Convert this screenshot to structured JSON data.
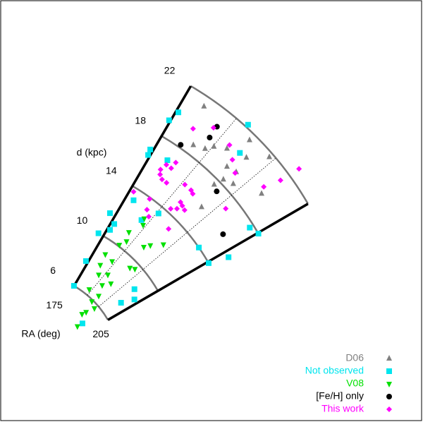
{
  "chart_data": {
    "type": "polar-wedge",
    "xlabel": "RA (deg)",
    "ylabel": "d (kpc)",
    "xlim": [
      175,
      205
    ],
    "xticks": [
      175,
      205
    ],
    "xgrid": [
      185,
      195
    ],
    "ylim": [
      6,
      22
    ],
    "yticks": [
      6,
      10,
      14,
      18,
      22
    ],
    "legend": "lower right",
    "series": [
      {
        "name": "D06",
        "color": "#808080",
        "marker": "triangle-up",
        "x": [
          181.7,
          184.1,
          185.2,
          187.4,
          189.4,
          189.9,
          192.0,
          191.3,
          193.4,
          198.6,
          191.3,
          194.1,
          192.5,
          190.7,
          179.0
        ],
        "y": [
          18.7,
          19.0,
          19.5,
          20.0,
          21.5,
          19.1,
          19.3,
          18.3,
          18.6,
          19.7,
          20.5,
          21.7,
          15.9,
          17.6,
          21.3
        ]
      },
      {
        "name": "Not observed",
        "color": "#00e5ee",
        "marker": "square",
        "x": [
          174.7,
          175.5,
          187.3,
          189.8,
          179.0,
          174.3,
          174.5,
          177.4,
          173.1,
          176.2,
          176.0,
          172.9,
          173.9,
          174.9,
          185.5,
          200.3,
          205.4,
          206.6,
          203.1,
          205.2,
          199.2,
          203.0,
          200.8,
          197.0,
          182.8
        ],
        "y": [
          19.2,
          20.0,
          22.2,
          20.4,
          16.8,
          16.8,
          16.4,
          13.2,
          11.6,
          11.1,
          10.6,
          10.0,
          7.9,
          6.0,
          13.5,
          14.0,
          14.0,
          15.4,
          17.7,
          18.0,
          8.7,
          8.3,
          7.4,
          4.4,
          12.4
        ]
      },
      {
        "name": "V08",
        "color": "#00e000",
        "marker": "triangle-down",
        "x": [
          182.0,
          183.3,
          183.2,
          184.2,
          189.2,
          190.4,
          193.1,
          182.0,
          183.8,
          180.6,
          186.2,
          191.1,
          192.8,
          182.8,
          187.6,
          183.7,
          190.2,
          190.3,
          189.7,
          194.1,
          192.2,
          191.2,
          196.3,
          179.7
        ],
        "y": [
          11.2,
          10.6,
          12.6,
          12.2,
          11.1,
          11.5,
          12.2,
          10.1,
          8.9,
          8.2,
          8.0,
          9.4,
          9.6,
          7.6,
          7.2,
          6.4,
          7.7,
          6.5,
          5.9,
          5.7,
          5.1,
          4.8,
          4.0,
          9.0
        ]
      },
      {
        "name": "[Fe/H] only",
        "color": "#000000",
        "marker": "circle",
        "x": [
          183.2,
          183.4,
          179.5,
          192.2,
          201.0
        ],
        "y": [
          20.7,
          19.8,
          18.2,
          17.4,
          15.9
        ]
      },
      {
        "name": "This work",
        "color": "#ff00ff",
        "marker": "diamond",
        "x": [
          179.7,
          182.8,
          187.3,
          189.7,
          180.9,
          179.4,
          180.8,
          179.5,
          180.6,
          185.8,
          187.8,
          188.7,
          187.9,
          188.9,
          188.4,
          190.1,
          187.2,
          181.0,
          190.7,
          182.2,
          183.9,
          176.1,
          196.5,
          192.0,
          198.7,
          199.0,
          197.8,
          182.0,
          178.9
        ],
        "y": [
          19.6,
          20.5,
          20.3,
          19.7,
          17.0,
          16.5,
          16.5,
          15.7,
          15.5,
          16.2,
          16.2,
          16.1,
          15.1,
          15.0,
          14.6,
          14.9,
          14.3,
          13.9,
          13.2,
          13.2,
          12.9,
          13.7,
          17.1,
          19.2,
          21.3,
          22.8,
          20.1,
          15.5,
          16.0
        ]
      }
    ]
  }
}
